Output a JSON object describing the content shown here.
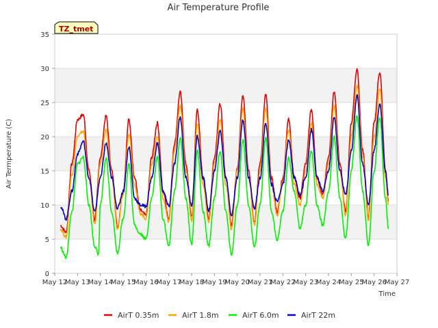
{
  "chart_data": {
    "type": "line",
    "title": "Air Temperature Profile",
    "xlabel": "Time",
    "ylabel": "Air Termperature (C)",
    "badge": "TZ_tmet",
    "ylim": [
      0,
      35
    ],
    "yticks": [
      0,
      5,
      10,
      15,
      20,
      25,
      30,
      35
    ],
    "xlim": [
      "2021-05-12",
      "2021-05-27"
    ],
    "xtick_labels": [
      "May 12",
      "May 13",
      "May 14",
      "May 15",
      "May 16",
      "May 17",
      "May 18",
      "May 19",
      "May 20",
      "May 21",
      "May 22",
      "May 23",
      "May 24",
      "May 25",
      "May 26",
      "May 27"
    ],
    "grid": true,
    "legend_position": "bottom",
    "series": [
      {
        "name": "AirT 0.35m",
        "color": "#dd0000",
        "points": [
          [
            "May 12 06:00",
            7.0
          ],
          [
            "May 12 12:00",
            6.0
          ],
          [
            "May 12 18:00",
            16.0
          ],
          [
            "May 13 00:00",
            22.5
          ],
          [
            "May 13 06:00",
            23.2
          ],
          [
            "May 13 12:00",
            15.0
          ],
          [
            "May 13 18:00",
            7.8
          ],
          [
            "May 14 00:00",
            17.0
          ],
          [
            "May 14 06:00",
            23.0
          ],
          [
            "May 14 12:00",
            15.0
          ],
          [
            "May 14 18:00",
            6.8
          ],
          [
            "May 15 00:00",
            12.0
          ],
          [
            "May 15 06:00",
            22.5
          ],
          [
            "May 15 12:00",
            14.0
          ],
          [
            "May 15 18:00",
            9.2
          ],
          [
            "May 16 00:00",
            8.5
          ],
          [
            "May 16 06:00",
            17.0
          ],
          [
            "May 16 12:00",
            22.0
          ],
          [
            "May 16 18:00",
            12.0
          ],
          [
            "May 17 00:00",
            8.0
          ],
          [
            "May 17 06:00",
            19.0
          ],
          [
            "May 17 12:00",
            26.5
          ],
          [
            "May 17 18:00",
            16.0
          ],
          [
            "May 18 00:00",
            8.2
          ],
          [
            "May 18 06:00",
            24.0
          ],
          [
            "May 18 12:00",
            14.0
          ],
          [
            "May 18 18:00",
            8.0
          ],
          [
            "May 19 00:00",
            17.0
          ],
          [
            "May 19 06:00",
            24.8
          ],
          [
            "May 19 12:00",
            14.0
          ],
          [
            "May 19 18:00",
            7.2
          ],
          [
            "May 20 00:00",
            15.5
          ],
          [
            "May 20 06:00",
            26.0
          ],
          [
            "May 20 12:00",
            15.0
          ],
          [
            "May 20 18:00",
            7.5
          ],
          [
            "May 21 00:00",
            16.0
          ],
          [
            "May 21 06:00",
            26.2
          ],
          [
            "May 21 12:00",
            14.0
          ],
          [
            "May 21 18:00",
            9.0
          ],
          [
            "May 22 00:00",
            14.0
          ],
          [
            "May 22 06:00",
            22.5
          ],
          [
            "May 22 12:00",
            14.0
          ],
          [
            "May 22 18:00",
            11.0
          ],
          [
            "May 23 00:00",
            16.0
          ],
          [
            "May 23 06:00",
            24.0
          ],
          [
            "May 23 12:00",
            14.0
          ],
          [
            "May 23 18:00",
            11.5
          ],
          [
            "May 24 00:00",
            17.0
          ],
          [
            "May 24 06:00",
            26.5
          ],
          [
            "May 24 12:00",
            16.0
          ],
          [
            "May 24 18:00",
            9.0
          ],
          [
            "May 25 00:00",
            22.0
          ],
          [
            "May 25 06:00",
            30.0
          ],
          [
            "May 25 12:00",
            18.0
          ],
          [
            "May 25 18:00",
            8.2
          ],
          [
            "May 26 00:00",
            22.0
          ],
          [
            "May 26 06:00",
            29.5
          ],
          [
            "May 26 12:00",
            15.0
          ],
          [
            "May 26 15:00",
            10.5
          ]
        ]
      },
      {
        "name": "AirT 1.8m",
        "color": "#ffa500",
        "points": [
          [
            "May 12 06:00",
            6.5
          ],
          [
            "May 12 12:00",
            5.3
          ],
          [
            "May 12 18:00",
            14.5
          ],
          [
            "May 13 00:00",
            20.0
          ],
          [
            "May 13 06:00",
            20.8
          ],
          [
            "May 13 12:00",
            14.0
          ],
          [
            "May 13 18:00",
            7.2
          ],
          [
            "May 14 00:00",
            16.0
          ],
          [
            "May 14 06:00",
            21.0
          ],
          [
            "May 14 12:00",
            14.0
          ],
          [
            "May 14 18:00",
            6.5
          ],
          [
            "May 15 00:00",
            11.5
          ],
          [
            "May 15 06:00",
            20.5
          ],
          [
            "May 15 12:00",
            13.0
          ],
          [
            "May 15 18:00",
            8.8
          ],
          [
            "May 16 00:00",
            8.0
          ],
          [
            "May 16 06:00",
            16.0
          ],
          [
            "May 16 12:00",
            20.0
          ],
          [
            "May 16 18:00",
            11.0
          ],
          [
            "May 17 00:00",
            7.5
          ],
          [
            "May 17 06:00",
            18.0
          ],
          [
            "May 17 12:00",
            24.5
          ],
          [
            "May 17 18:00",
            15.0
          ],
          [
            "May 18 00:00",
            7.8
          ],
          [
            "May 18 06:00",
            22.0
          ],
          [
            "May 18 12:00",
            13.0
          ],
          [
            "May 18 18:00",
            7.5
          ],
          [
            "May 19 00:00",
            16.0
          ],
          [
            "May 19 06:00",
            22.5
          ],
          [
            "May 19 12:00",
            13.0
          ],
          [
            "May 19 18:00",
            6.5
          ],
          [
            "May 20 00:00",
            15.0
          ],
          [
            "May 20 06:00",
            24.0
          ],
          [
            "May 20 12:00",
            14.0
          ],
          [
            "May 20 18:00",
            7.0
          ],
          [
            "May 21 00:00",
            15.0
          ],
          [
            "May 21 06:00",
            24.2
          ],
          [
            "May 21 12:00",
            13.0
          ],
          [
            "May 21 18:00",
            8.5
          ],
          [
            "May 22 00:00",
            13.5
          ],
          [
            "May 22 06:00",
            21.0
          ],
          [
            "May 22 12:00",
            13.0
          ],
          [
            "May 22 18:00",
            10.0
          ],
          [
            "May 23 00:00",
            15.0
          ],
          [
            "May 23 06:00",
            22.0
          ],
          [
            "May 23 12:00",
            13.0
          ],
          [
            "May 23 18:00",
            11.0
          ],
          [
            "May 24 00:00",
            16.0
          ],
          [
            "May 24 06:00",
            24.5
          ],
          [
            "May 24 12:00",
            15.0
          ],
          [
            "May 24 18:00",
            8.5
          ],
          [
            "May 25 00:00",
            20.0
          ],
          [
            "May 25 06:00",
            27.5
          ],
          [
            "May 25 12:00",
            17.0
          ],
          [
            "May 25 18:00",
            7.8
          ],
          [
            "May 26 00:00",
            20.0
          ],
          [
            "May 26 06:00",
            27.0
          ],
          [
            "May 26 12:00",
            14.0
          ],
          [
            "May 26 15:00",
            10.0
          ]
        ]
      },
      {
        "name": "AirT 6.0m",
        "color": "#00ee00",
        "points": [
          [
            "May 12 06:00",
            3.8
          ],
          [
            "May 12 12:00",
            2.3
          ],
          [
            "May 12 18:00",
            9.0
          ],
          [
            "May 13 00:00",
            16.0
          ],
          [
            "May 13 06:00",
            17.0
          ],
          [
            "May 13 12:00",
            10.0
          ],
          [
            "May 13 18:00",
            4.0
          ],
          [
            "May 13 22:00",
            2.8
          ],
          [
            "May 14 00:00",
            10.0
          ],
          [
            "May 14 06:00",
            16.8
          ],
          [
            "May 14 12:00",
            9.0
          ],
          [
            "May 14 18:00",
            3.0
          ],
          [
            "May 15 00:00",
            8.0
          ],
          [
            "May 15 06:00",
            16.0
          ],
          [
            "May 15 12:00",
            7.0
          ],
          [
            "May 15 18:00",
            5.8
          ],
          [
            "May 16 00:00",
            5.0
          ],
          [
            "May 16 06:00",
            11.0
          ],
          [
            "May 16 12:00",
            17.0
          ],
          [
            "May 16 18:00",
            8.0
          ],
          [
            "May 17 00:00",
            4.0
          ],
          [
            "May 17 06:00",
            12.0
          ],
          [
            "May 17 12:00",
            19.8
          ],
          [
            "May 17 18:00",
            11.0
          ],
          [
            "May 18 00:00",
            4.2
          ],
          [
            "May 18 06:00",
            18.0
          ],
          [
            "May 18 12:00",
            9.0
          ],
          [
            "May 18 18:00",
            4.0
          ],
          [
            "May 19 00:00",
            11.0
          ],
          [
            "May 19 06:00",
            18.0
          ],
          [
            "May 19 12:00",
            9.0
          ],
          [
            "May 19 18:00",
            2.8
          ],
          [
            "May 20 00:00",
            10.0
          ],
          [
            "May 20 06:00",
            19.5
          ],
          [
            "May 20 12:00",
            10.0
          ],
          [
            "May 20 18:00",
            3.8
          ],
          [
            "May 21 00:00",
            10.0
          ],
          [
            "May 21 06:00",
            19.8
          ],
          [
            "May 21 12:00",
            9.0
          ],
          [
            "May 21 18:00",
            5.0
          ],
          [
            "May 22 00:00",
            9.0
          ],
          [
            "May 22 06:00",
            16.8
          ],
          [
            "May 22 12:00",
            12.0
          ],
          [
            "May 22 18:00",
            6.5
          ],
          [
            "May 23 00:00",
            10.0
          ],
          [
            "May 23 06:00",
            18.0
          ],
          [
            "May 23 12:00",
            10.0
          ],
          [
            "May 23 18:00",
            7.0
          ],
          [
            "May 24 00:00",
            12.0
          ],
          [
            "May 24 06:00",
            20.0
          ],
          [
            "May 24 12:00",
            11.0
          ],
          [
            "May 24 18:00",
            5.0
          ],
          [
            "May 25 00:00",
            15.0
          ],
          [
            "May 25 06:00",
            23.0
          ],
          [
            "May 25 12:00",
            12.0
          ],
          [
            "May 25 18:00",
            4.2
          ],
          [
            "May 26 00:00",
            15.0
          ],
          [
            "May 26 06:00",
            22.8
          ],
          [
            "May 26 12:00",
            11.0
          ],
          [
            "May 26 15:00",
            6.5
          ]
        ]
      },
      {
        "name": "AirT 22m",
        "color": "#0000cc",
        "points": [
          [
            "May 12 06:00",
            9.8
          ],
          [
            "May 12 12:00",
            8.0
          ],
          [
            "May 12 18:00",
            12.0
          ],
          [
            "May 13 00:00",
            17.5
          ],
          [
            "May 13 06:00",
            19.3
          ],
          [
            "May 13 12:00",
            14.0
          ],
          [
            "May 13 18:00",
            9.0
          ],
          [
            "May 14 00:00",
            14.0
          ],
          [
            "May 14 06:00",
            19.0
          ],
          [
            "May 14 12:00",
            14.0
          ],
          [
            "May 14 18:00",
            9.5
          ],
          [
            "May 15 00:00",
            12.0
          ],
          [
            "May 15 06:00",
            18.5
          ],
          [
            "May 15 12:00",
            11.0
          ],
          [
            "May 15 18:00",
            10.0
          ],
          [
            "May 16 00:00",
            9.8
          ],
          [
            "May 16 06:00",
            14.0
          ],
          [
            "May 16 12:00",
            19.0
          ],
          [
            "May 16 18:00",
            12.0
          ],
          [
            "May 17 00:00",
            9.8
          ],
          [
            "May 17 06:00",
            16.0
          ],
          [
            "May 17 12:00",
            22.8
          ],
          [
            "May 17 18:00",
            14.0
          ],
          [
            "May 18 00:00",
            10.0
          ],
          [
            "May 18 06:00",
            20.0
          ],
          [
            "May 18 12:00",
            14.0
          ],
          [
            "May 18 18:00",
            9.2
          ],
          [
            "May 19 00:00",
            15.0
          ],
          [
            "May 19 06:00",
            20.8
          ],
          [
            "May 19 12:00",
            14.0
          ],
          [
            "May 19 18:00",
            8.5
          ],
          [
            "May 20 00:00",
            14.0
          ],
          [
            "May 20 06:00",
            22.5
          ],
          [
            "May 20 12:00",
            14.0
          ],
          [
            "May 20 18:00",
            9.5
          ],
          [
            "May 21 00:00",
            14.0
          ],
          [
            "May 21 06:00",
            22.0
          ],
          [
            "May 21 12:00",
            13.0
          ],
          [
            "May 21 18:00",
            10.5
          ],
          [
            "May 22 00:00",
            13.0
          ],
          [
            "May 22 06:00",
            19.5
          ],
          [
            "May 22 12:00",
            14.0
          ],
          [
            "May 22 18:00",
            11.5
          ],
          [
            "May 23 00:00",
            14.0
          ],
          [
            "May 23 06:00",
            21.0
          ],
          [
            "May 23 12:00",
            14.0
          ],
          [
            "May 23 18:00",
            12.0
          ],
          [
            "May 24 00:00",
            15.0
          ],
          [
            "May 24 06:00",
            22.8
          ],
          [
            "May 24 12:00",
            15.0
          ],
          [
            "May 24 18:00",
            11.5
          ],
          [
            "May 25 00:00",
            18.0
          ],
          [
            "May 25 06:00",
            26.0
          ],
          [
            "May 25 12:00",
            16.0
          ],
          [
            "May 25 18:00",
            10.0
          ],
          [
            "May 26 00:00",
            18.0
          ],
          [
            "May 26 06:00",
            24.8
          ],
          [
            "May 26 12:00",
            15.0
          ],
          [
            "May 26 15:00",
            11.5
          ]
        ]
      }
    ]
  }
}
